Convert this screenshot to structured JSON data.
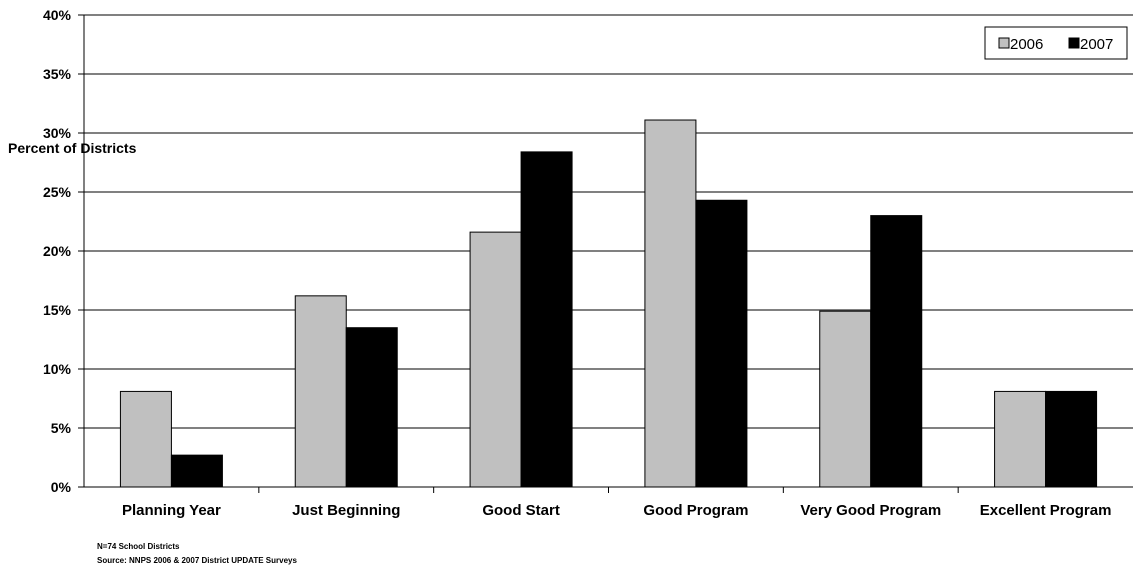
{
  "chart_data": {
    "type": "bar",
    "title": "",
    "xlabel": "",
    "ylabel": "Percent of Districts",
    "ylim": [
      0,
      40
    ],
    "yticks": [
      "0%",
      "5%",
      "10%",
      "15%",
      "20%",
      "25%",
      "30%",
      "35%",
      "40%"
    ],
    "categories": [
      "Planning Year",
      "Just Beginning",
      "Good Start",
      "Good Program",
      "Very Good Program",
      "Excellent Program"
    ],
    "series": [
      {
        "name": "2006",
        "color": "#c0c0c0",
        "values": [
          8.1,
          16.2,
          21.6,
          31.1,
          14.9,
          8.1
        ]
      },
      {
        "name": "2007",
        "color": "#000000",
        "values": [
          2.7,
          13.5,
          28.4,
          24.3,
          23.0,
          8.1
        ]
      }
    ],
    "grid": true,
    "legend_position": "top-right"
  },
  "footnotes": {
    "sample": "N=74 School Districts",
    "source": "Source: NNPS 2006 & 2007 District UPDATE Surveys"
  }
}
